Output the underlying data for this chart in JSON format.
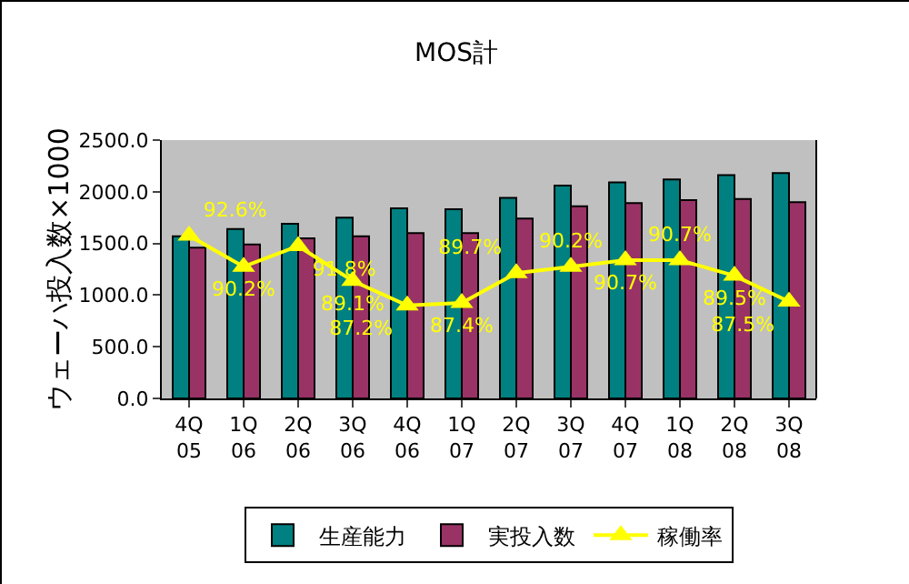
{
  "chart_data": {
    "type": "bar",
    "title": "MOS計",
    "ylabel": "ウェーハ投入数×1000",
    "categories": [
      "4Q 05",
      "1Q 06",
      "2Q 06",
      "3Q 06",
      "4Q 06",
      "1Q 07",
      "2Q 07",
      "3Q 07",
      "4Q 07",
      "1Q 08",
      "2Q 08",
      "3Q 08"
    ],
    "series": [
      {
        "name": "生産能力",
        "color": "#008080",
        "values": [
          1570,
          1640,
          1690,
          1750,
          1840,
          1830,
          1940,
          2060,
          2090,
          2120,
          2160,
          2180
        ]
      },
      {
        "name": "実投入数",
        "color": "#993366",
        "values": [
          1460,
          1490,
          1550,
          1570,
          1600,
          1600,
          1740,
          1860,
          1890,
          1920,
          1930,
          1900
        ]
      },
      {
        "name": "稼働率",
        "type": "line",
        "axis": "y2",
        "color": "#ffff00",
        "marker": "triangle",
        "values": [
          92.6,
          90.2,
          91.8,
          89.1,
          87.2,
          87.4,
          89.7,
          90.2,
          90.7,
          90.7,
          89.5,
          87.5
        ],
        "value_labels": [
          "92.6%",
          "90.2%",
          "91.8%",
          "89.1%",
          "87.2%",
          "87.4%",
          "89.7%",
          "90.2%",
          "90.7%",
          "90.7%",
          "89.5%",
          "87.5%"
        ]
      }
    ],
    "ylim": [
      0,
      2500
    ],
    "yticks": [
      {
        "value": 0,
        "label": "0.0"
      },
      {
        "value": 500,
        "label": "500.0"
      },
      {
        "value": 1000,
        "label": "1000.0"
      },
      {
        "value": 1500,
        "label": "1500.0"
      },
      {
        "value": 2000,
        "label": "2000.0"
      },
      {
        "value": 2500,
        "label": "2500.0"
      }
    ],
    "y2lim": [
      80,
      100
    ],
    "legend": "bottom"
  }
}
